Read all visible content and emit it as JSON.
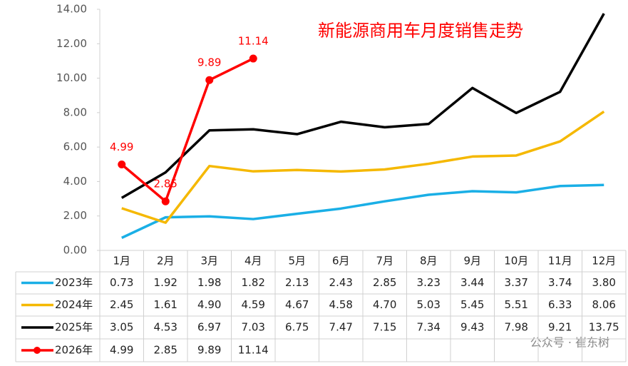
{
  "chart_data": {
    "type": "line",
    "title": "新能源商用车月度销售走势",
    "categories": [
      "1月",
      "2月",
      "3月",
      "4月",
      "5月",
      "6月",
      "7月",
      "8月",
      "9月",
      "10月",
      "11月",
      "12月"
    ],
    "ylim": [
      0,
      14
    ],
    "yticks": [
      {
        "value": 0,
        "label": "0.00"
      },
      {
        "value": 2,
        "label": "2.00"
      },
      {
        "value": 4,
        "label": "4.00"
      },
      {
        "value": 6,
        "label": "6.00"
      },
      {
        "value": 8,
        "label": "8.00"
      },
      {
        "value": 10,
        "label": "10.00"
      },
      {
        "value": 12,
        "label": "12.00"
      },
      {
        "value": 14,
        "label": "14.00"
      }
    ],
    "grid": false,
    "series": [
      {
        "name": "2023年",
        "color": "#1aafe6",
        "markers": false,
        "data_labels": false,
        "values": [
          0.73,
          1.92,
          1.98,
          1.82,
          2.13,
          2.43,
          2.85,
          3.23,
          3.44,
          3.37,
          3.74,
          3.8
        ],
        "value_labels": [
          "0.73",
          "1.92",
          "1.98",
          "1.82",
          "2.13",
          "2.43",
          "2.85",
          "3.23",
          "3.44",
          "3.37",
          "3.74",
          "3.80"
        ]
      },
      {
        "name": "2024年",
        "color": "#f5b800",
        "markers": false,
        "data_labels": false,
        "values": [
          2.45,
          1.61,
          4.9,
          4.59,
          4.67,
          4.58,
          4.7,
          5.03,
          5.45,
          5.51,
          6.33,
          8.06
        ],
        "value_labels": [
          "2.45",
          "1.61",
          "4.90",
          "4.59",
          "4.67",
          "4.58",
          "4.70",
          "5.03",
          "5.45",
          "5.51",
          "6.33",
          "8.06"
        ]
      },
      {
        "name": "2025年",
        "color": "#000000",
        "markers": false,
        "data_labels": false,
        "values": [
          3.05,
          4.53,
          6.97,
          7.03,
          6.75,
          7.47,
          7.15,
          7.34,
          9.43,
          7.98,
          9.21,
          13.75
        ],
        "value_labels": [
          "3.05",
          "4.53",
          "6.97",
          "7.03",
          "6.75",
          "7.47",
          "7.15",
          "7.34",
          "9.43",
          "7.98",
          "9.21",
          "13.75"
        ]
      },
      {
        "name": "2026年",
        "color": "#ff0000",
        "markers": true,
        "data_labels": true,
        "values": [
          4.99,
          2.85,
          9.89,
          11.14,
          null,
          null,
          null,
          null,
          null,
          null,
          null,
          null
        ],
        "value_labels": [
          "4.99",
          "2.85",
          "9.89",
          "11.14",
          null,
          null,
          null,
          null,
          null,
          null,
          null,
          null
        ]
      }
    ],
    "watermark": "公众号 · 崔东树"
  }
}
